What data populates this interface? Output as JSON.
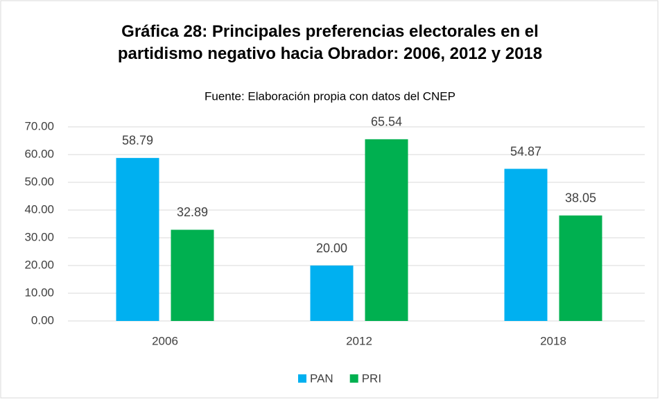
{
  "chart_data": {
    "type": "bar",
    "title": "Gráfica 28: Principales preferencias electorales en el partidismo negativo hacia Obrador: 2006, 2012 y 2018",
    "subtitle": "Fuente: Elaboración propia con datos del CNEP",
    "categories": [
      "2006",
      "2012",
      "2018"
    ],
    "series": [
      {
        "name": "PAN",
        "color": "#00b0f0",
        "values": [
          58.79,
          20,
          54.87
        ],
        "value_labels": [
          "58.79",
          "20.00",
          "54.87"
        ]
      },
      {
        "name": "PRI",
        "color": "#00b050",
        "values": [
          32.89,
          65.54,
          38.05
        ],
        "value_labels": [
          "32.89",
          "65.54",
          "38.05"
        ]
      }
    ],
    "ylim": [
      0,
      70
    ],
    "yticks": [
      {
        "value": 0,
        "label": "0.00"
      },
      {
        "value": 10,
        "label": "10.00"
      },
      {
        "value": 20,
        "label": "20.00"
      },
      {
        "value": 30,
        "label": "30.00"
      },
      {
        "value": 40,
        "label": "40.00"
      },
      {
        "value": 50,
        "label": "50.00"
      },
      {
        "value": 60,
        "label": "60.00"
      },
      {
        "value": 70,
        "label": "70.00"
      }
    ],
    "grid": true,
    "legend": "bottom"
  }
}
